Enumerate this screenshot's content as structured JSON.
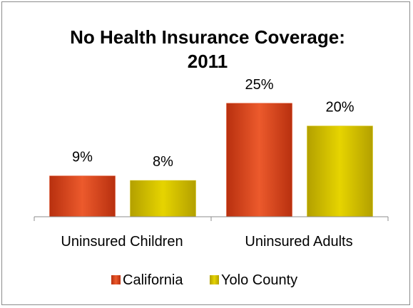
{
  "chart_data": {
    "type": "bar",
    "title": "No Health Insurance Coverage: 2011",
    "title_lines": [
      "No Health Insurance Coverage:",
      "2011"
    ],
    "categories": [
      "Uninsured Children",
      "Uninsured Adults"
    ],
    "series": [
      {
        "name": "California",
        "values": [
          9,
          25
        ],
        "labels": [
          "9%",
          "25%"
        ],
        "color": "#e04a20"
      },
      {
        "name": "Yolo County",
        "values": [
          8,
          20
        ],
        "labels": [
          "8%",
          "20%"
        ],
        "color": "#d8c400"
      }
    ],
    "ylim": [
      0,
      30
    ],
    "grid": false,
    "legend_position": "bottom"
  }
}
